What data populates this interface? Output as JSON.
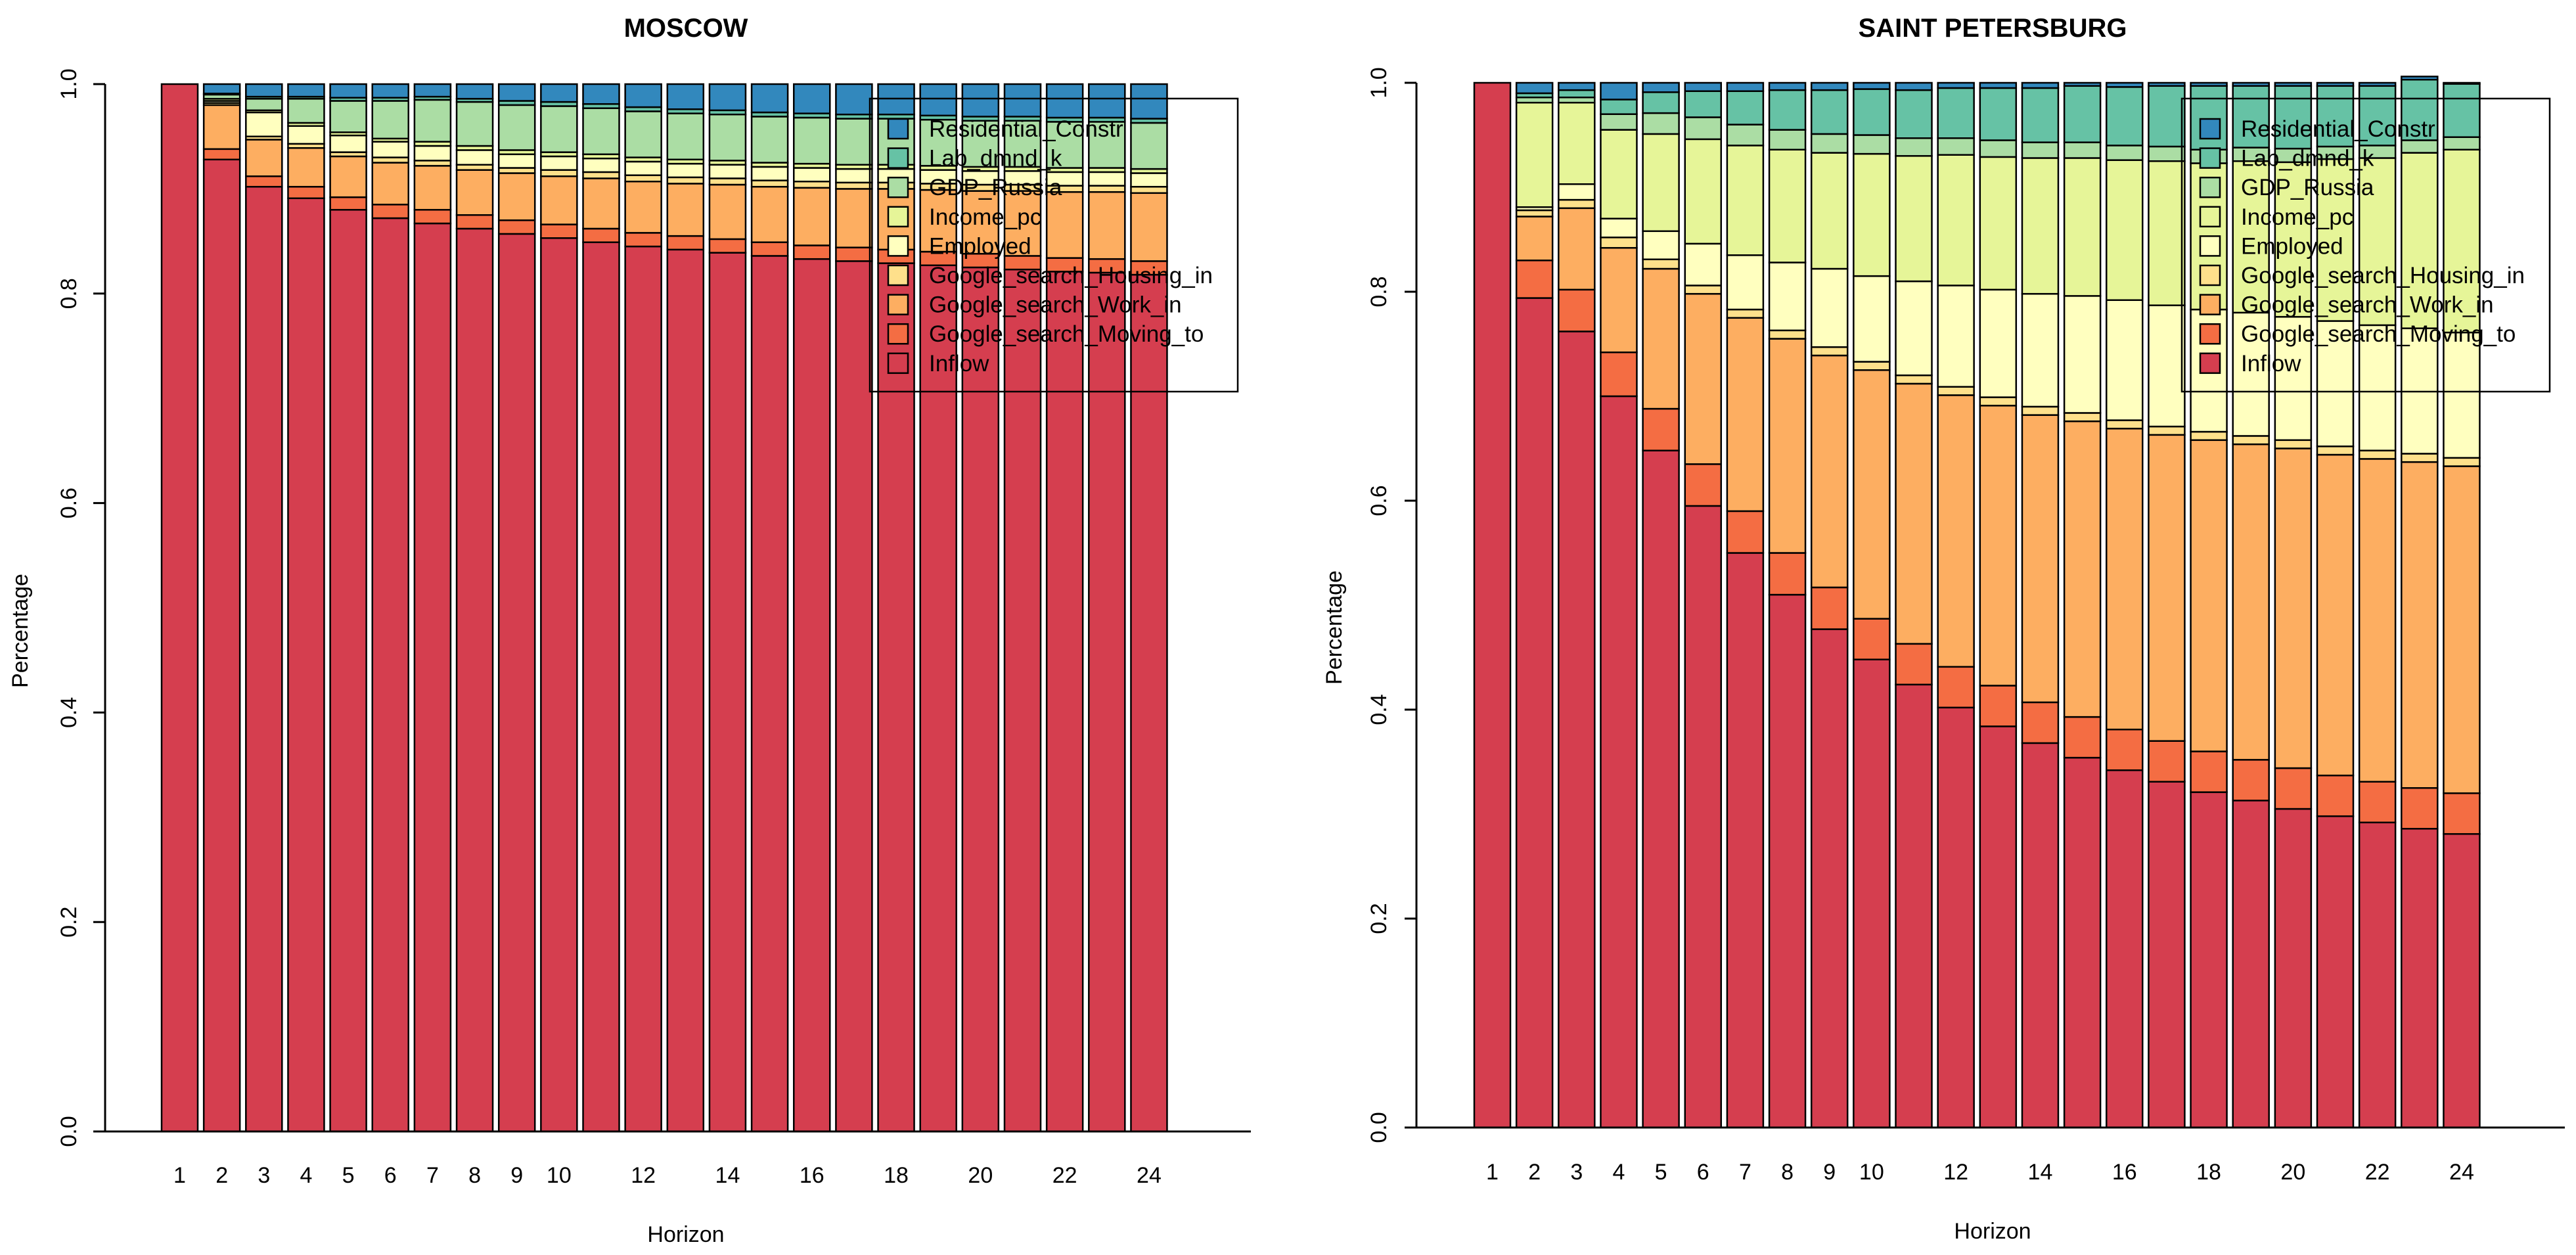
{
  "chart_data": [
    {
      "type": "bar",
      "stacked": true,
      "title": "MOSCOW",
      "xlabel": "Horizon",
      "ylabel": "Percentage",
      "ylim": [
        0,
        1
      ],
      "y_ticks": [
        "0.0",
        "0.2",
        "0.4",
        "0.6",
        "0.8",
        "1.0"
      ],
      "categories": [
        1,
        2,
        3,
        4,
        5,
        6,
        7,
        8,
        9,
        10,
        11,
        12,
        13,
        14,
        15,
        16,
        17,
        18,
        19,
        20,
        21,
        22,
        23,
        24
      ],
      "x_tick_labels": [
        "1",
        "2",
        "3",
        "4",
        "5",
        "6",
        "7",
        "8",
        "9",
        "10",
        "12",
        "14",
        "16",
        "18",
        "20",
        "22",
        "24"
      ],
      "legend_position": "top-right",
      "series": [
        {
          "name": "Inflow",
          "color": "#d53e4f",
          "values": [
            1.0,
            0.928,
            0.902,
            0.891,
            0.88,
            0.872,
            0.867,
            0.862,
            0.857,
            0.853,
            0.849,
            0.845,
            0.842,
            0.839,
            0.836,
            0.833,
            0.831,
            0.829,
            0.827,
            0.825,
            0.823,
            0.821,
            0.82,
            0.818
          ]
        },
        {
          "name": "Google_search_Moving_to",
          "color": "#f46d43",
          "values": [
            0,
            0.01,
            0.01,
            0.011,
            0.012,
            0.013,
            0.013,
            0.013,
            0.013,
            0.013,
            0.013,
            0.013,
            0.013,
            0.013,
            0.013,
            0.013,
            0.013,
            0.013,
            0.013,
            0.013,
            0.013,
            0.013,
            0.013,
            0.013
          ]
        },
        {
          "name": "Google_search_Work_in",
          "color": "#fdae61",
          "values": [
            0,
            0.042,
            0.035,
            0.037,
            0.039,
            0.04,
            0.042,
            0.043,
            0.045,
            0.046,
            0.048,
            0.049,
            0.05,
            0.052,
            0.053,
            0.055,
            0.056,
            0.058,
            0.059,
            0.06,
            0.062,
            0.063,
            0.064,
            0.065
          ]
        },
        {
          "name": "Google_search_Housing_in",
          "color": "#fee08b",
          "values": [
            0,
            0.002,
            0.003,
            0.004,
            0.004,
            0.005,
            0.005,
            0.005,
            0.005,
            0.006,
            0.006,
            0.006,
            0.006,
            0.006,
            0.006,
            0.006,
            0.006,
            0.006,
            0.006,
            0.006,
            0.006,
            0.006,
            0.006,
            0.006
          ]
        },
        {
          "name": "Employed",
          "color": "#ffffbf",
          "values": [
            0,
            0.002,
            0.023,
            0.017,
            0.016,
            0.015,
            0.014,
            0.014,
            0.013,
            0.013,
            0.013,
            0.013,
            0.013,
            0.013,
            0.013,
            0.013,
            0.013,
            0.013,
            0.013,
            0.013,
            0.013,
            0.013,
            0.013,
            0.013
          ]
        },
        {
          "name": "Income_pc",
          "color": "#e6f598",
          "values": [
            0,
            0.002,
            0.002,
            0.003,
            0.003,
            0.003,
            0.004,
            0.004,
            0.004,
            0.004,
            0.004,
            0.004,
            0.004,
            0.004,
            0.004,
            0.004,
            0.004,
            0.004,
            0.004,
            0.004,
            0.004,
            0.004,
            0.004,
            0.004
          ]
        },
        {
          "name": "GDP_Russia",
          "color": "#abdda4",
          "values": [
            0,
            0.004,
            0.011,
            0.023,
            0.03,
            0.036,
            0.04,
            0.042,
            0.043,
            0.044,
            0.044,
            0.044,
            0.044,
            0.044,
            0.044,
            0.044,
            0.044,
            0.044,
            0.044,
            0.044,
            0.044,
            0.044,
            0.044,
            0.044
          ]
        },
        {
          "name": "Lab_dmnd_k",
          "color": "#66c2a5",
          "values": [
            0,
            0.001,
            0.002,
            0.002,
            0.003,
            0.003,
            0.003,
            0.003,
            0.004,
            0.004,
            0.004,
            0.004,
            0.004,
            0.004,
            0.004,
            0.004,
            0.004,
            0.004,
            0.004,
            0.004,
            0.004,
            0.004,
            0.004,
            0.004
          ]
        },
        {
          "name": "Residential_Constr",
          "color": "#3288bd",
          "values": [
            0,
            0.009,
            0.012,
            0.012,
            0.013,
            0.013,
            0.012,
            0.014,
            0.016,
            0.017,
            0.019,
            0.022,
            0.024,
            0.025,
            0.027,
            0.028,
            0.029,
            0.029,
            0.03,
            0.031,
            0.031,
            0.032,
            0.032,
            0.033
          ]
        }
      ]
    },
    {
      "type": "bar",
      "stacked": true,
      "title": "SAINT PETERSBURG",
      "xlabel": "Horizon",
      "ylabel": "Percentage",
      "ylim": [
        0,
        1
      ],
      "y_ticks": [
        "0.0",
        "0.2",
        "0.4",
        "0.6",
        "0.8",
        "1.0"
      ],
      "categories": [
        1,
        2,
        3,
        4,
        5,
        6,
        7,
        8,
        9,
        10,
        11,
        12,
        13,
        14,
        15,
        16,
        17,
        18,
        19,
        20,
        21,
        22,
        23,
        24
      ],
      "x_tick_labels": [
        "1",
        "2",
        "3",
        "4",
        "5",
        "6",
        "7",
        "8",
        "9",
        "10",
        "12",
        "14",
        "16",
        "18",
        "20",
        "22",
        "24"
      ],
      "legend_position": "top-right",
      "series": [
        {
          "name": "Inflow",
          "color": "#d53e4f",
          "values": [
            1.0,
            0.794,
            0.762,
            0.7,
            0.648,
            0.595,
            0.55,
            0.51,
            0.477,
            0.448,
            0.424,
            0.402,
            0.384,
            0.368,
            0.354,
            0.342,
            0.331,
            0.321,
            0.313,
            0.305,
            0.298,
            0.292,
            0.286,
            0.281
          ]
        },
        {
          "name": "Google_search_Moving_to",
          "color": "#f46d43",
          "values": [
            0,
            0.036,
            0.04,
            0.042,
            0.04,
            0.04,
            0.04,
            0.04,
            0.04,
            0.039,
            0.039,
            0.039,
            0.039,
            0.039,
            0.039,
            0.039,
            0.039,
            0.039,
            0.039,
            0.039,
            0.039,
            0.039,
            0.039,
            0.039
          ]
        },
        {
          "name": "Google_search_Work_in",
          "color": "#fdae61",
          "values": [
            0,
            0.042,
            0.078,
            0.1,
            0.134,
            0.163,
            0.185,
            0.205,
            0.222,
            0.238,
            0.249,
            0.26,
            0.268,
            0.275,
            0.283,
            0.288,
            0.293,
            0.298,
            0.302,
            0.306,
            0.307,
            0.309,
            0.312,
            0.313
          ]
        },
        {
          "name": "Google_search_Housing_in",
          "color": "#fee08b",
          "values": [
            0,
            0.006,
            0.008,
            0.01,
            0.009,
            0.008,
            0.008,
            0.008,
            0.008,
            0.008,
            0.008,
            0.008,
            0.008,
            0.008,
            0.008,
            0.008,
            0.008,
            0.008,
            0.008,
            0.008,
            0.008,
            0.008,
            0.008,
            0.008
          ]
        },
        {
          "name": "Employed",
          "color": "#ffffbf",
          "values": [
            0,
            0.003,
            0.015,
            0.018,
            0.027,
            0.04,
            0.052,
            0.065,
            0.075,
            0.082,
            0.09,
            0.097,
            0.103,
            0.108,
            0.112,
            0.115,
            0.116,
            0.117,
            0.118,
            0.118,
            0.12,
            0.12,
            0.12,
            0.12
          ]
        },
        {
          "name": "Income_pc",
          "color": "#e6f598",
          "values": [
            0,
            0.1,
            0.078,
            0.085,
            0.093,
            0.1,
            0.105,
            0.108,
            0.111,
            0.117,
            0.12,
            0.125,
            0.127,
            0.13,
            0.132,
            0.134,
            0.138,
            0.14,
            0.145,
            0.148,
            0.155,
            0.16,
            0.168,
            0.175
          ]
        },
        {
          "name": "GDP_Russia",
          "color": "#abdda4",
          "values": [
            0,
            0.005,
            0.005,
            0.015,
            0.02,
            0.021,
            0.02,
            0.019,
            0.018,
            0.018,
            0.017,
            0.016,
            0.016,
            0.015,
            0.015,
            0.014,
            0.014,
            0.013,
            0.013,
            0.013,
            0.012,
            0.012,
            0.012,
            0.012
          ]
        },
        {
          "name": "Lab_dmnd_k",
          "color": "#66c2a5",
          "values": [
            0,
            0.004,
            0.007,
            0.014,
            0.02,
            0.025,
            0.032,
            0.038,
            0.042,
            0.044,
            0.046,
            0.048,
            0.05,
            0.052,
            0.054,
            0.056,
            0.058,
            0.061,
            0.059,
            0.06,
            0.058,
            0.057,
            0.058,
            0.051
          ]
        },
        {
          "name": "Residential_Constr",
          "color": "#3288bd",
          "values": [
            0,
            0.01,
            0.007,
            0.016,
            0.009,
            0.008,
            0.008,
            0.007,
            0.007,
            0.006,
            0.007,
            0.005,
            0.005,
            0.005,
            0.003,
            0.004,
            0.003,
            0.003,
            0.003,
            0.003,
            0.003,
            0.003,
            0.003,
            0.001
          ]
        }
      ]
    }
  ]
}
